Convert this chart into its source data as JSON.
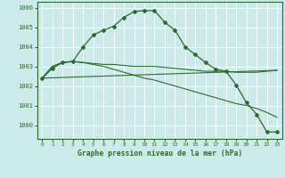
{
  "title": "Graphe pression niveau de la mer (hPa)",
  "bg_color": "#cceaea",
  "grid_color": "#b0d8d8",
  "line_color": "#2d6a2d",
  "xlim": [
    -0.5,
    23.5
  ],
  "ylim": [
    999.3,
    1006.3
  ],
  "yticks": [
    1000,
    1001,
    1002,
    1003,
    1004,
    1005,
    1006
  ],
  "xticks": [
    0,
    1,
    2,
    3,
    4,
    5,
    6,
    7,
    8,
    9,
    10,
    11,
    12,
    13,
    14,
    15,
    16,
    17,
    18,
    19,
    20,
    21,
    22,
    23
  ],
  "line1_x": [
    0,
    1,
    2,
    3,
    4,
    5,
    6,
    7,
    8,
    9,
    10,
    11,
    12,
    13,
    14,
    15,
    16,
    17,
    18,
    19,
    20,
    21,
    22,
    23
  ],
  "line1_y": [
    1002.4,
    1002.9,
    1003.2,
    1003.25,
    1004.0,
    1004.6,
    1004.85,
    1005.05,
    1005.5,
    1005.8,
    1005.85,
    1005.85,
    1005.25,
    1004.85,
    1004.0,
    1003.6,
    1003.2,
    1002.85,
    1002.75,
    1002.05,
    1001.15,
    1000.55,
    999.65,
    999.65
  ],
  "line2_x": [
    0,
    1,
    2,
    3,
    4,
    5,
    6,
    7,
    8,
    9,
    10,
    11,
    12,
    13,
    14,
    15,
    16,
    17,
    18,
    19,
    20,
    21,
    22,
    23
  ],
  "line2_y": [
    1002.4,
    1003.0,
    1003.2,
    1003.25,
    1003.2,
    1003.15,
    1003.1,
    1003.1,
    1003.05,
    1003.0,
    1003.0,
    1003.0,
    1002.95,
    1002.9,
    1002.85,
    1002.8,
    1002.75,
    1002.75,
    1002.75,
    1002.7,
    1002.7,
    1002.7,
    1002.75,
    1002.8
  ],
  "line3_x": [
    0,
    23
  ],
  "line3_y": [
    1002.4,
    1002.8
  ],
  "line4_x": [
    0,
    1,
    2,
    3,
    4,
    5,
    6,
    7,
    8,
    9,
    10,
    11,
    12,
    13,
    14,
    15,
    16,
    17,
    18,
    19,
    20,
    21,
    22,
    23
  ],
  "line4_y": [
    1002.4,
    1003.0,
    1003.2,
    1003.25,
    1003.2,
    1003.1,
    1003.0,
    1002.85,
    1002.7,
    1002.55,
    1002.4,
    1002.3,
    1002.15,
    1002.0,
    1001.85,
    1001.7,
    1001.55,
    1001.4,
    1001.25,
    1001.1,
    1001.0,
    1000.85,
    1000.65,
    1000.4
  ],
  "spine_color": "#2d6a2d"
}
